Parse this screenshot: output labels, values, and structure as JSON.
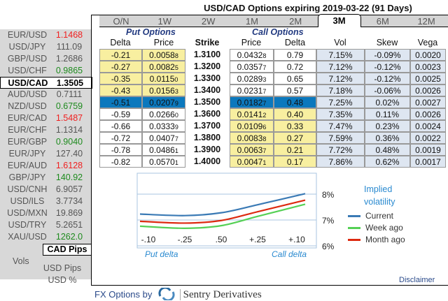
{
  "title": "USD/CAD Options expiring 2019-03-22 (91 Days)",
  "tabs": [
    "O/N",
    "1W",
    "2W",
    "1M",
    "2M",
    "3M",
    "6M",
    "12M"
  ],
  "active_tab": "3M",
  "sidebar": {
    "pairs": [
      {
        "symbol": "EUR/USD",
        "price": "1.1468",
        "trend": "dn"
      },
      {
        "symbol": "USD/JPY",
        "price": "111.09",
        "trend": ""
      },
      {
        "symbol": "GBP/USD",
        "price": "1.2686",
        "trend": ""
      },
      {
        "symbol": "USD/CHF",
        "price": "0.9865",
        "trend": "up"
      },
      {
        "symbol": "USD/CAD",
        "price": "1.3505",
        "trend": "",
        "selected": true
      },
      {
        "symbol": "AUD/USD",
        "price": "0.7111",
        "trend": ""
      },
      {
        "symbol": "NZD/USD",
        "price": "0.6759",
        "trend": "up"
      },
      {
        "symbol": "EUR/CAD",
        "price": "1.5487",
        "trend": "dn"
      },
      {
        "symbol": "EUR/CHF",
        "price": "1.1314",
        "trend": ""
      },
      {
        "symbol": "EUR/GBP",
        "price": "0.9040",
        "trend": "up"
      },
      {
        "symbol": "EUR/JPY",
        "price": "127.40",
        "trend": ""
      },
      {
        "symbol": "EUR/AUD",
        "price": "1.6128",
        "trend": "dn"
      },
      {
        "symbol": "GBP/JPY",
        "price": "140.92",
        "trend": "up"
      },
      {
        "symbol": "USD/CNH",
        "price": "6.9057",
        "trend": ""
      },
      {
        "symbol": "USD/ILS",
        "price": "3.7734",
        "trend": ""
      },
      {
        "symbol": "USD/MXN",
        "price": "19.869",
        "trend": ""
      },
      {
        "symbol": "USD/TRY",
        "price": "5.2651",
        "trend": ""
      },
      {
        "symbol": "XAU/USD",
        "price": "1262.0",
        "trend": "up"
      }
    ],
    "vols_label": "Vols",
    "units": [
      "CAD Pips",
      "USD Pips",
      "USD %"
    ],
    "active_unit": "CAD Pips"
  },
  "table": {
    "put_title": "Put Options",
    "call_title": "Call Options",
    "headers": {
      "put_delta": "Delta",
      "put_price": "Price",
      "strike": "Strike",
      "call_price": "Price",
      "call_delta": "Delta",
      "vol": "Vol",
      "skew": "Skew",
      "vega": "Vega"
    },
    "rows": [
      {
        "put_delta": "-0.21",
        "put_price": [
          "0.0058",
          "8"
        ],
        "strike": "1.3100",
        "call_price": [
          "0.0432",
          "8"
        ],
        "call_delta": "0.79",
        "vol": "7.15%",
        "skew": "-0.09%",
        "vega": "0.0020"
      },
      {
        "put_delta": "-0.27",
        "put_price": [
          "0.0082",
          "5"
        ],
        "strike": "1.3200",
        "call_price": [
          "0.0357",
          "7"
        ],
        "call_delta": "0.72",
        "vol": "7.12%",
        "skew": "-0.12%",
        "vega": "0.0023"
      },
      {
        "put_delta": "-0.35",
        "put_price": [
          "0.0115",
          "0"
        ],
        "strike": "1.3300",
        "call_price": [
          "0.0289",
          "3"
        ],
        "call_delta": "0.65",
        "vol": "7.12%",
        "skew": "-0.12%",
        "vega": "0.0025"
      },
      {
        "put_delta": "-0.43",
        "put_price": [
          "0.0156",
          "3"
        ],
        "strike": "1.3400",
        "call_price": [
          "0.0231",
          "7"
        ],
        "call_delta": "0.57",
        "vol": "7.18%",
        "skew": "-0.06%",
        "vega": "0.0026"
      },
      {
        "put_delta": "-0.51",
        "put_price": [
          "0.0207",
          "9"
        ],
        "strike": "1.3500",
        "call_price": [
          "0.0182",
          "7"
        ],
        "call_delta": "0.48",
        "vol": "7.25%",
        "skew": "0.02%",
        "vega": "0.0027"
      },
      {
        "put_delta": "-0.59",
        "put_price": [
          "0.0266",
          "0"
        ],
        "strike": "1.3600",
        "call_price": [
          "0.0141",
          "2"
        ],
        "call_delta": "0.40",
        "vol": "7.35%",
        "skew": "0.11%",
        "vega": "0.0026"
      },
      {
        "put_delta": "-0.66",
        "put_price": [
          "0.0333",
          "9"
        ],
        "strike": "1.3700",
        "call_price": [
          "0.0109",
          "6"
        ],
        "call_delta": "0.33",
        "vol": "7.47%",
        "skew": "0.23%",
        "vega": "0.0024"
      },
      {
        "put_delta": "-0.72",
        "put_price": [
          "0.0407",
          "7"
        ],
        "strike": "1.3800",
        "call_price": [
          "0.0083",
          "8"
        ],
        "call_delta": "0.27",
        "vol": "7.59%",
        "skew": "0.36%",
        "vega": "0.0022"
      },
      {
        "put_delta": "-0.78",
        "put_price": [
          "0.0486",
          "1"
        ],
        "strike": "1.3900",
        "call_price": [
          "0.0063",
          "7"
        ],
        "call_delta": "0.21",
        "vol": "7.72%",
        "skew": "0.48%",
        "vega": "0.0019"
      },
      {
        "put_delta": "-0.82",
        "put_price": [
          "0.0570",
          "1"
        ],
        "strike": "1.4000",
        "call_price": [
          "0.0047",
          "1"
        ],
        "call_delta": "0.17",
        "vol": "7.86%",
        "skew": "0.62%",
        "vega": "0.0017"
      }
    ]
  },
  "chart_data": {
    "type": "line",
    "title": "Implied volatility",
    "categories": [
      "-.10",
      "-.25",
      ".50",
      "+.25",
      "+.10"
    ],
    "xlabel_left": "Put delta",
    "xlabel_right": "Call delta",
    "yticks": [
      "6%",
      "7%",
      "8%"
    ],
    "ylim": [
      6,
      8.8
    ],
    "series": [
      {
        "name": "Current",
        "color": "#3a7ab5",
        "values": [
          7.23,
          7.17,
          7.28,
          7.59,
          8.02
        ]
      },
      {
        "name": "Week ago",
        "color": "#55d055",
        "values": [
          6.76,
          6.68,
          6.78,
          7.14,
          7.61
        ]
      },
      {
        "name": "Month ago",
        "color": "#dd2a10",
        "values": [
          6.95,
          6.88,
          6.98,
          7.32,
          7.77
        ]
      }
    ]
  },
  "disclaimer": "Disclaimer",
  "footer": {
    "prefix": "FX Options by",
    "brand": "Sentry Derivatives"
  }
}
